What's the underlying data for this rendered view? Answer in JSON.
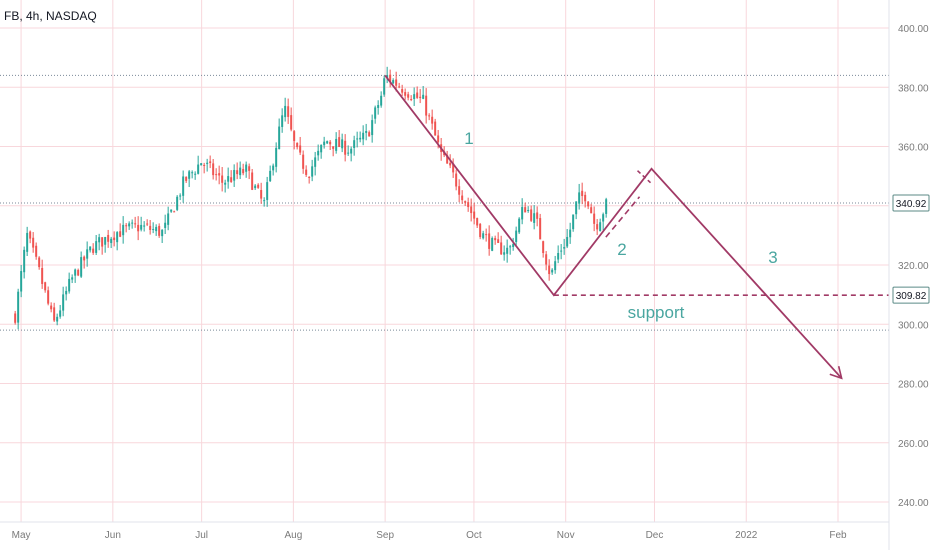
{
  "symbol_title": "FB, 4h, NASDAQ",
  "colors": {
    "up": "#26a69a",
    "down": "#ef5350",
    "grid": "#f8d7dc",
    "drawing": "#a13a66",
    "label_teal": "#4aa6a0",
    "axis_text": "#7a7a7a",
    "price_badge": "#ffffff",
    "price_badge_border": "#5b8a86"
  },
  "chart_data": {
    "type": "candlestick",
    "title": "FB, 4h, NASDAQ",
    "ylim": [
      232,
      408
    ],
    "y_ticks": [
      240,
      260,
      280,
      300,
      320,
      340,
      360,
      380,
      400
    ],
    "y_tick_labels": [
      "240.00",
      "260.00",
      "280.00",
      "300.00",
      "320.00",
      "340.00",
      "360.00",
      "380.00",
      "400.00"
    ],
    "x_labels": [
      "May",
      "Jun",
      "Jul",
      "Aug",
      "Sep",
      "Oct",
      "Nov",
      "Dec",
      "2022",
      "Feb"
    ],
    "close_path": [
      {
        "d": "2021-04-29",
        "v": 303
      },
      {
        "d": "2021-05-03",
        "v": 330
      },
      {
        "d": "2021-05-07",
        "v": 318
      },
      {
        "d": "2021-05-12",
        "v": 300
      },
      {
        "d": "2021-05-18",
        "v": 315
      },
      {
        "d": "2021-05-25",
        "v": 326
      },
      {
        "d": "2021-06-02",
        "v": 331
      },
      {
        "d": "2021-06-10",
        "v": 333
      },
      {
        "d": "2021-06-18",
        "v": 331
      },
      {
        "d": "2021-06-25",
        "v": 348
      },
      {
        "d": "2021-07-01",
        "v": 355
      },
      {
        "d": "2021-07-08",
        "v": 348
      },
      {
        "d": "2021-07-16",
        "v": 352
      },
      {
        "d": "2021-07-22",
        "v": 340
      },
      {
        "d": "2021-07-26",
        "v": 360
      },
      {
        "d": "2021-07-29",
        "v": 373
      },
      {
        "d": "2021-08-02",
        "v": 358
      },
      {
        "d": "2021-08-06",
        "v": 351
      },
      {
        "d": "2021-08-12",
        "v": 362
      },
      {
        "d": "2021-08-20",
        "v": 359
      },
      {
        "d": "2021-08-26",
        "v": 364
      },
      {
        "d": "2021-08-31",
        "v": 378
      },
      {
        "d": "2021-09-01",
        "v": 384
      },
      {
        "d": "2021-09-08",
        "v": 379
      },
      {
        "d": "2021-09-14",
        "v": 375
      },
      {
        "d": "2021-09-20",
        "v": 357
      },
      {
        "d": "2021-09-24",
        "v": 350
      },
      {
        "d": "2021-09-28",
        "v": 342
      },
      {
        "d": "2021-10-04",
        "v": 330
      },
      {
        "d": "2021-10-08",
        "v": 326
      },
      {
        "d": "2021-10-13",
        "v": 325
      },
      {
        "d": "2021-10-18",
        "v": 340
      },
      {
        "d": "2021-10-22",
        "v": 335
      },
      {
        "d": "2021-10-27",
        "v": 316
      },
      {
        "d": "2021-10-29",
        "v": 323
      },
      {
        "d": "2021-11-02",
        "v": 330
      },
      {
        "d": "2021-11-05",
        "v": 342
      },
      {
        "d": "2021-11-08",
        "v": 344
      },
      {
        "d": "2021-11-11",
        "v": 333
      },
      {
        "d": "2021-11-15",
        "v": 340.92
      }
    ],
    "price_lines": [
      {
        "value": 384,
        "style": "dotted"
      },
      {
        "value": 340.92,
        "style": "dotted"
      },
      {
        "value": 298,
        "style": "dotted"
      }
    ],
    "price_badges": [
      {
        "value": 340.92,
        "label": "340.92"
      },
      {
        "value": 309.82,
        "label": "309.82"
      }
    ],
    "support_line": {
      "value": 309.82,
      "from": "2021-10-28",
      "label": "support"
    },
    "wave_projection": [
      {
        "d": "2021-09-01",
        "v": 384
      },
      {
        "d": "2021-10-28",
        "v": 309.82
      },
      {
        "d": "2021-11-30",
        "v": 352.5
      },
      {
        "d": "2022-02-02",
        "v": 282
      }
    ],
    "wave_labels": [
      "1",
      "2",
      "3"
    ]
  }
}
